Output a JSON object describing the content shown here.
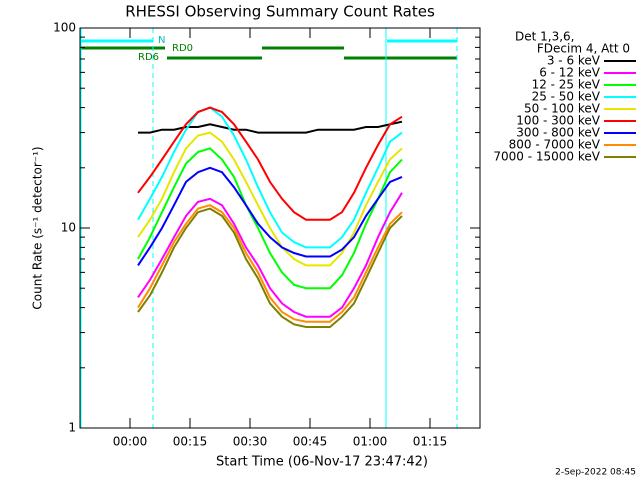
{
  "chart_data": {
    "type": "line",
    "title": "RHESSI Observing Summary Count Rates",
    "x_label": "Start Time (06-Nov-17 23:47:42)",
    "y_label": "Count Rate (s⁻¹ detector⁻¹)",
    "log_y": true,
    "xlim": [
      -12.5,
      87.5
    ],
    "ylim": [
      1,
      100
    ],
    "xticks": [
      {
        "value": 0,
        "label": "00:00"
      },
      {
        "value": 15,
        "label": "00:15"
      },
      {
        "value": 30,
        "label": "00:30"
      },
      {
        "value": 45,
        "label": "00:45"
      },
      {
        "value": 60,
        "label": "01:00"
      },
      {
        "value": 75,
        "label": "01:15"
      }
    ],
    "yticks": [
      1,
      10,
      100
    ],
    "yminorticks": [
      2,
      3,
      4,
      5,
      6,
      7,
      8,
      9,
      20,
      30,
      40,
      50,
      60,
      70,
      80,
      90
    ],
    "legend_header": [
      "Det 1,3,6,",
      "FDecim 4, Att 0"
    ],
    "annotations": [
      "N",
      "RD0",
      "RD6"
    ],
    "timestamp": "2-Sep-2022 08:45",
    "x": [
      2,
      5,
      8,
      11,
      14,
      17,
      20,
      23,
      26,
      29,
      32,
      35,
      38,
      41,
      44,
      47,
      50,
      53,
      56,
      59,
      62,
      65,
      68
    ],
    "series": [
      {
        "name": "3 - 6 keV",
        "color": "#000000",
        "values": [
          30,
          30,
          31,
          31,
          32,
          32,
          33,
          32,
          31,
          31,
          30,
          30,
          30,
          30,
          30,
          31,
          31,
          31,
          31,
          32,
          32,
          33,
          34
        ]
      },
      {
        "name": "6 - 12 keV",
        "color": "#ff00ff",
        "values": [
          4.5,
          5.5,
          7,
          9,
          11.5,
          13.5,
          14,
          13,
          10.5,
          8,
          6.5,
          5,
          4.2,
          3.8,
          3.6,
          3.6,
          3.6,
          4,
          5,
          6.5,
          9,
          12,
          15
        ]
      },
      {
        "name": "12 - 25 keV",
        "color": "#00ff00",
        "values": [
          7,
          9,
          12,
          16,
          21,
          24,
          25,
          22,
          18,
          13,
          10,
          7.5,
          6,
          5.2,
          5,
          5,
          5,
          5.8,
          7.5,
          10.5,
          14,
          19,
          22
        ]
      },
      {
        "name": "25 - 50 keV",
        "color": "#00ffff",
        "values": [
          11,
          14,
          18,
          24,
          31,
          38,
          40,
          36,
          29,
          22,
          16,
          12,
          9.5,
          8.5,
          8,
          8,
          8,
          9,
          11,
          15,
          20,
          27,
          30
        ]
      },
      {
        "name": "50 - 100 keV",
        "color": "#e6e600",
        "values": [
          9,
          11,
          14,
          19,
          25,
          29,
          30,
          27,
          22,
          17,
          13,
          10,
          8,
          7,
          6.5,
          6.5,
          6.5,
          7.5,
          9.5,
          13,
          17,
          22,
          25
        ]
      },
      {
        "name": "100 - 300 keV",
        "color": "#ff0000",
        "values": [
          15,
          18,
          22,
          27,
          33,
          38,
          40,
          38,
          33,
          27,
          22,
          17,
          14,
          12,
          11,
          11,
          11,
          12,
          15,
          20,
          26,
          33,
          36
        ]
      },
      {
        "name": "300 - 800 keV",
        "color": "#0000ff",
        "values": [
          6.5,
          8,
          10,
          13,
          17,
          19,
          20,
          19,
          16,
          13,
          10.5,
          9,
          8,
          7.5,
          7.2,
          7.2,
          7.2,
          7.8,
          9,
          11.5,
          14,
          17,
          18
        ]
      },
      {
        "name": "800 - 7000 keV",
        "color": "#ff8c00",
        "values": [
          4,
          5,
          6.5,
          8.5,
          10.5,
          12.5,
          13,
          12,
          10,
          7.5,
          6,
          4.5,
          3.8,
          3.5,
          3.4,
          3.4,
          3.4,
          3.8,
          4.5,
          6,
          8,
          10.5,
          12
        ]
      },
      {
        "name": "7000 - 15000 keV",
        "color": "#808000",
        "values": [
          3.8,
          4.6,
          6,
          8,
          10,
          12,
          12.5,
          11.5,
          9.5,
          7,
          5.6,
          4.2,
          3.6,
          3.3,
          3.2,
          3.2,
          3.2,
          3.6,
          4.2,
          5.6,
          7.5,
          10,
          11.5
        ]
      }
    ]
  }
}
